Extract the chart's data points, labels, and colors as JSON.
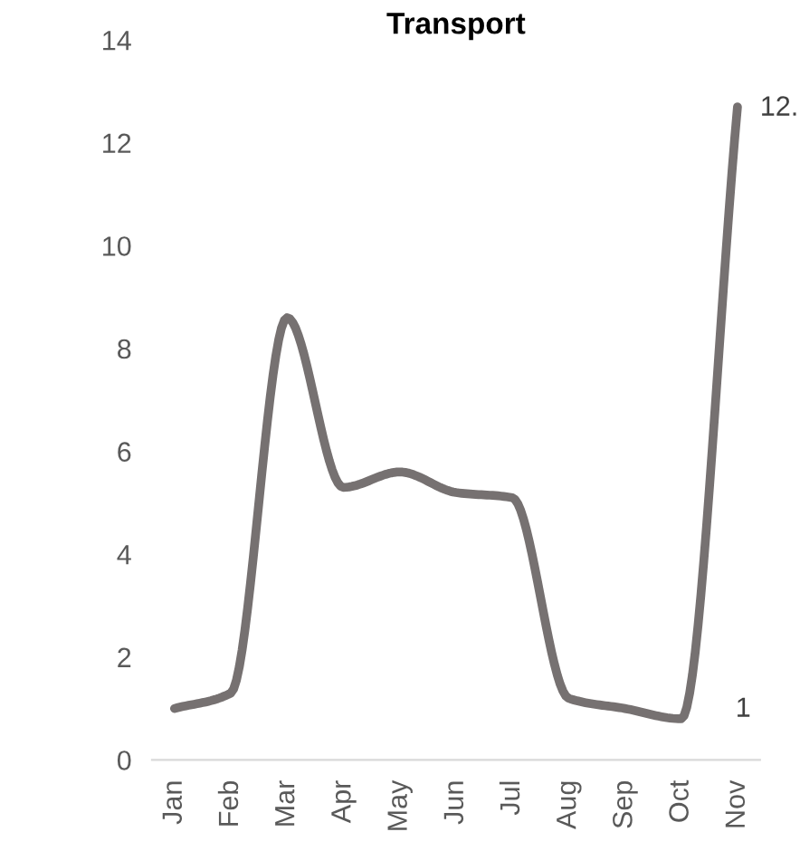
{
  "chart_data": {
    "type": "line",
    "title": "Transport",
    "categories": [
      "Jan",
      "Feb",
      "Mar",
      "Apr",
      "May",
      "Jun",
      "Jul",
      "Aug",
      "Sep",
      "Oct",
      "Nov"
    ],
    "series": [
      {
        "color": "#767171",
        "values": [
          1.0,
          1.3,
          8.6,
          5.3,
          5.6,
          5.2,
          5.1,
          1.2,
          1.0,
          0.8,
          12.7
        ]
      }
    ],
    "ylim": [
      0,
      14
    ],
    "yticks": [
      0,
      2,
      4,
      6,
      8,
      10,
      12,
      14
    ],
    "grid": false,
    "legend": false,
    "marker": "none",
    "line_style": "solid",
    "annotations": [
      "12.",
      "1"
    ]
  }
}
